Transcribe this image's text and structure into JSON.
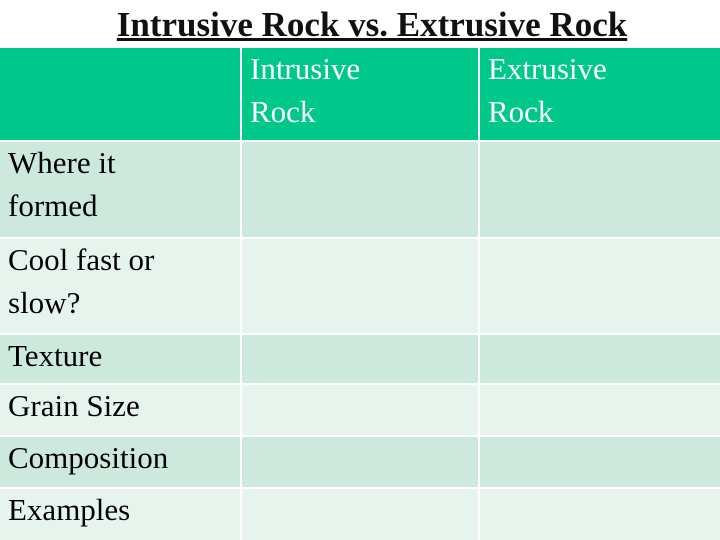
{
  "title": "Intrusive Rock vs. Extrusive Rock",
  "table": {
    "header": [
      "Intrusive Rock",
      "Extrusive Rock"
    ],
    "rows": [
      "Where it formed",
      "Cool fast or slow?",
      "Texture",
      "Grain Size",
      "Composition",
      "Examples"
    ]
  }
}
